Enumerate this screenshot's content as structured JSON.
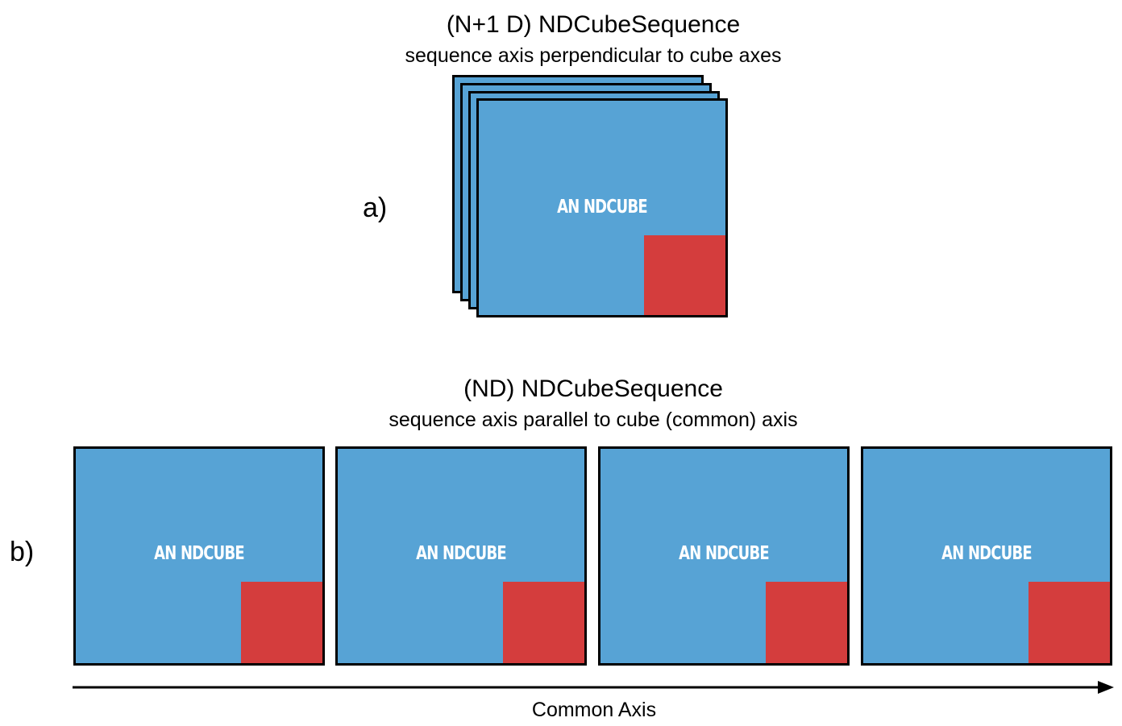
{
  "panel_a": {
    "label": "a)",
    "title": "(N+1 D) NDCubeSequence",
    "subtitle": "sequence axis perpendicular to cube axes",
    "cube_label": "AN NDCUBE",
    "stack_count": 4
  },
  "panel_b": {
    "label": "b)",
    "title": "(ND) NDCubeSequence",
    "subtitle": "sequence axis parallel to cube (common) axis",
    "cubes": [
      {
        "label": "AN NDCUBE"
      },
      {
        "label": "AN NDCUBE"
      },
      {
        "label": "AN NDCUBE"
      },
      {
        "label": "AN NDCUBE"
      }
    ],
    "axis_label": "Common Axis"
  },
  "colors": {
    "cube_fill": "#57a3d5",
    "corner_fill": "#d43d3d",
    "outline": "#000000",
    "cube_text": "#ffffff"
  }
}
